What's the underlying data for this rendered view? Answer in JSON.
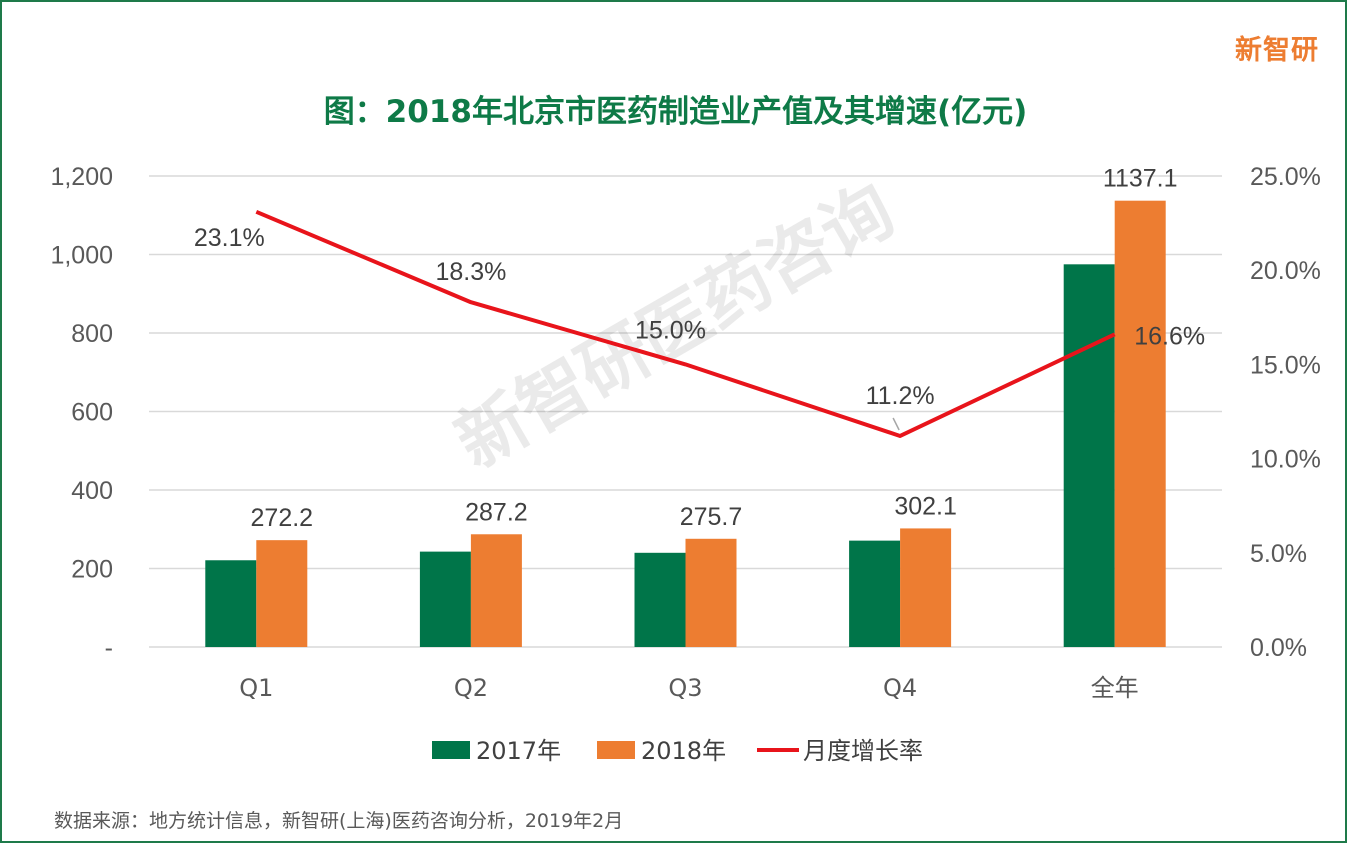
{
  "brand": "新智研",
  "watermark": "新智研医药咨询",
  "source": "数据来源：地方统计信息，新智研(上海)医药咨询分析，2019年2月",
  "chart_data": {
    "type": "bar",
    "title": "图：2018年北京市医药制造业产值及其增速(亿元)",
    "categories": [
      "Q1",
      "Q2",
      "Q3",
      "Q4",
      "全年"
    ],
    "series": [
      {
        "name": "2017年",
        "type": "bar",
        "axis": "left",
        "color": "#007549",
        "values": [
          221,
          243,
          240,
          271,
          975
        ]
      },
      {
        "name": "2018年",
        "type": "bar",
        "axis": "left",
        "color": "#ed7d31",
        "values": [
          272.2,
          287.2,
          275.7,
          302.1,
          1137.1
        ],
        "labels": [
          "272.2",
          "287.2",
          "275.7",
          "302.1",
          "1137.1"
        ]
      },
      {
        "name": "月度增长率",
        "type": "line",
        "axis": "right",
        "color": "#e8141b",
        "values": [
          23.1,
          18.3,
          15.0,
          11.2,
          16.6
        ],
        "labels": [
          "23.1%",
          "18.3%",
          "15.0%",
          "11.2%",
          "16.6%"
        ]
      }
    ],
    "y_left": {
      "ylim": [
        0,
        1200
      ],
      "ticks": [
        0,
        200,
        400,
        600,
        800,
        1000,
        1200
      ],
      "tick_labels": [
        "-",
        "200",
        "400",
        "600",
        "800",
        "1,000",
        "1,200"
      ]
    },
    "y_right": {
      "ylim": [
        0,
        25
      ],
      "ticks": [
        0,
        5,
        10,
        15,
        20,
        25
      ],
      "tick_labels": [
        "0.0%",
        "5.0%",
        "10.0%",
        "15.0%",
        "20.0%",
        "25.0%"
      ]
    },
    "grid": true,
    "legend_position": "bottom"
  }
}
